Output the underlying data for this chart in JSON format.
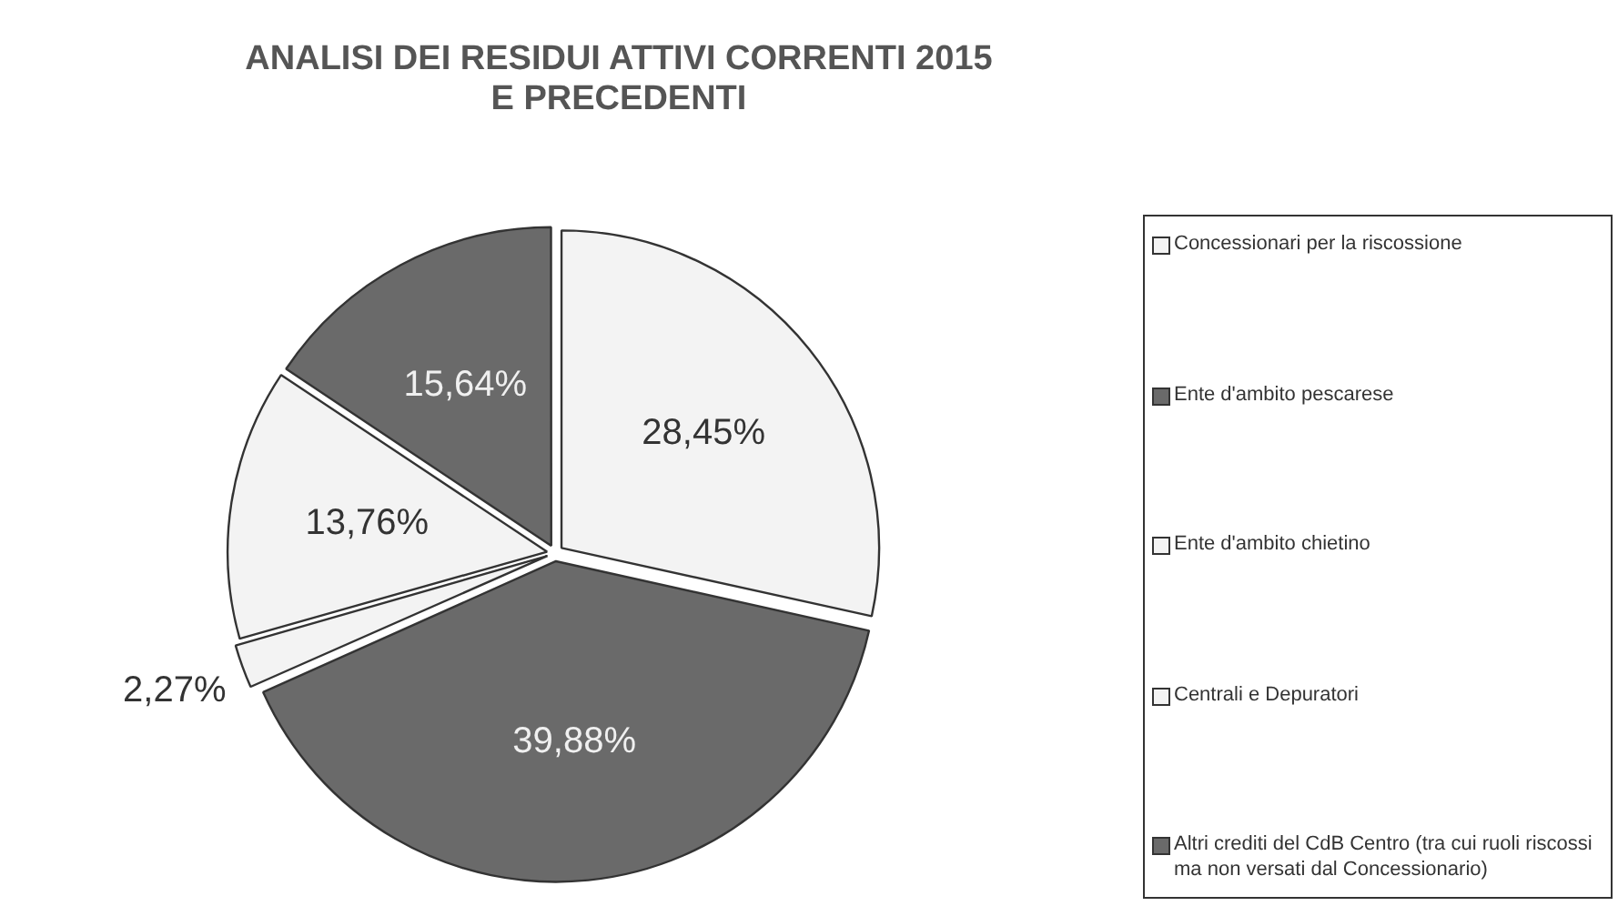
{
  "chart_data": {
    "type": "pie",
    "title": "ANALISI DEI RESIDUI ATTIVI CORRENTI 2015\nE PRECEDENTI",
    "categories": [
      "Concessionari per la riscossione",
      "Ente d'ambito pescarese",
      "Ente d'ambito chietino",
      "Centrali e Depuratori",
      "Altri crediti del CdB Centro (tra cui ruoli riscossi ma non versati dal Concessionario)"
    ],
    "values": [
      28.45,
      39.88,
      2.27,
      13.76,
      15.64
    ],
    "value_labels": [
      "28,45%",
      "39,88%",
      "2,27%",
      "13,76%",
      "15,64%"
    ],
    "colors": [
      "#f3f3f3",
      "#6a6a6a",
      "#f3f3f3",
      "#f3f3f3",
      "#6a6a6a"
    ],
    "legend": "right"
  }
}
